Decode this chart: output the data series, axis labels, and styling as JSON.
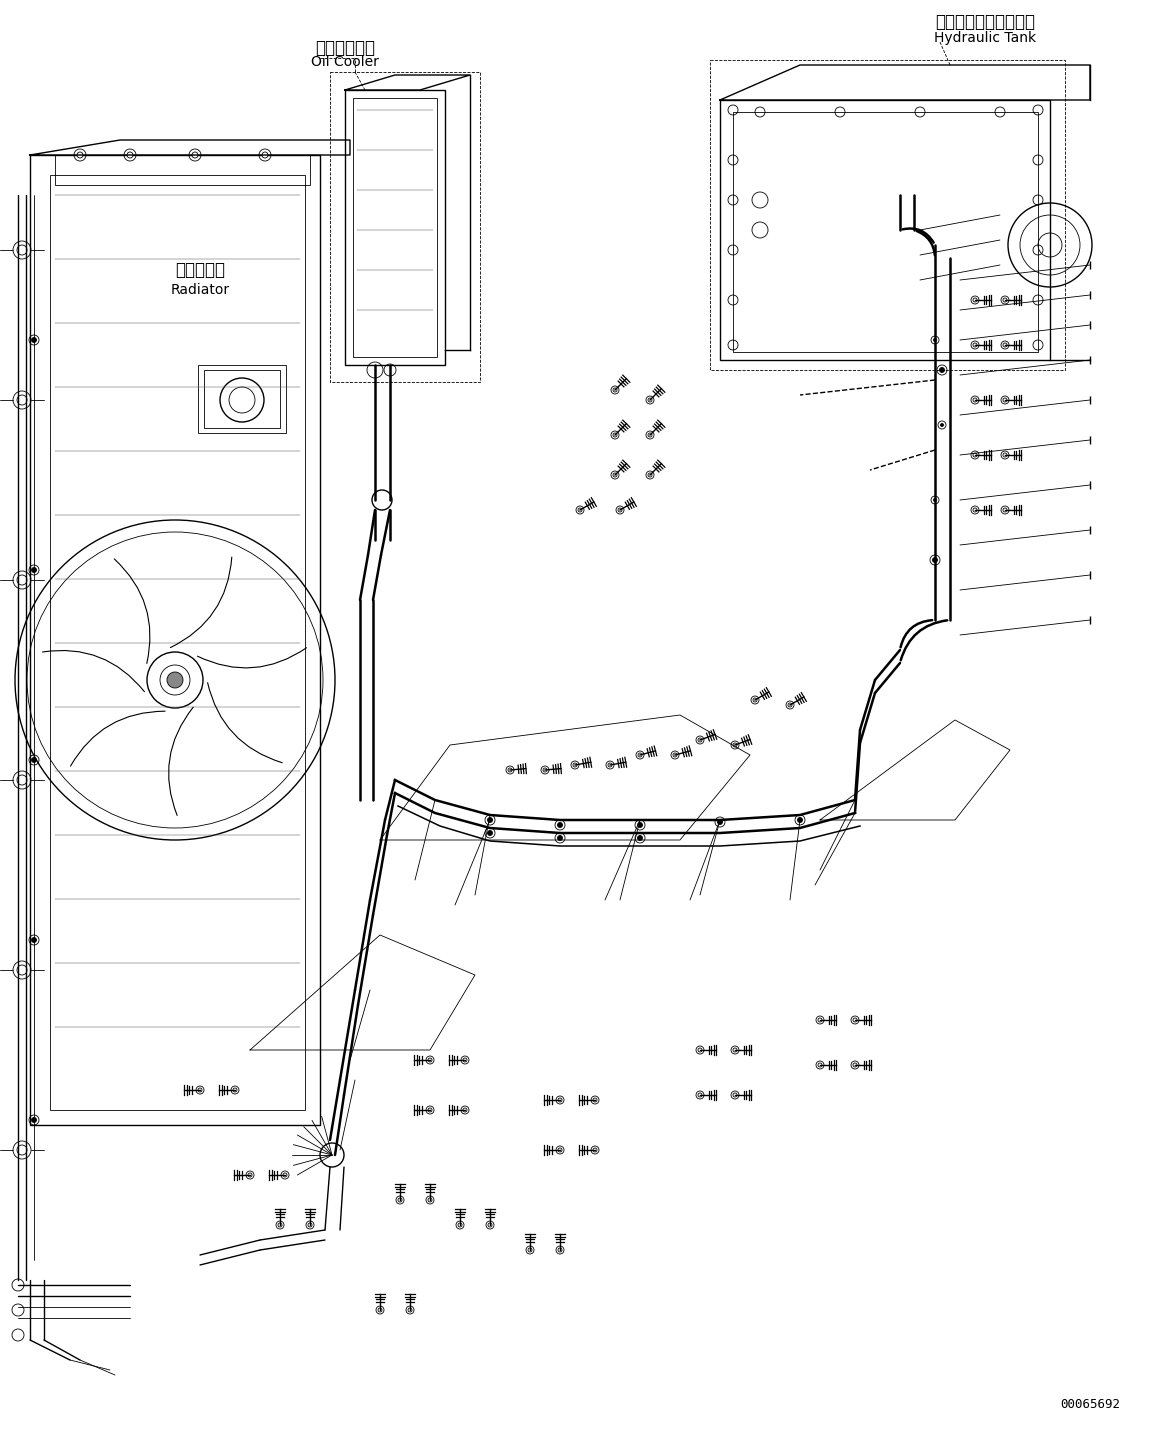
{
  "background_color": "#ffffff",
  "fig_width": 11.63,
  "fig_height": 14.38,
  "dpi": 100,
  "labels": {
    "oil_cooler_jp": "オイルクーラ",
    "oil_cooler_en": "Oil Cooler",
    "hydraulic_tank_jp": "ハイドロリックタンク",
    "hydraulic_tank_en": "Hydraulic Tank",
    "radiator_jp": "ラジエータ",
    "radiator_en": "Radiator",
    "part_number": "00065692"
  },
  "lw_thin": 0.6,
  "lw_med": 1.0,
  "lw_thick": 1.4,
  "lw_pipe": 1.8
}
